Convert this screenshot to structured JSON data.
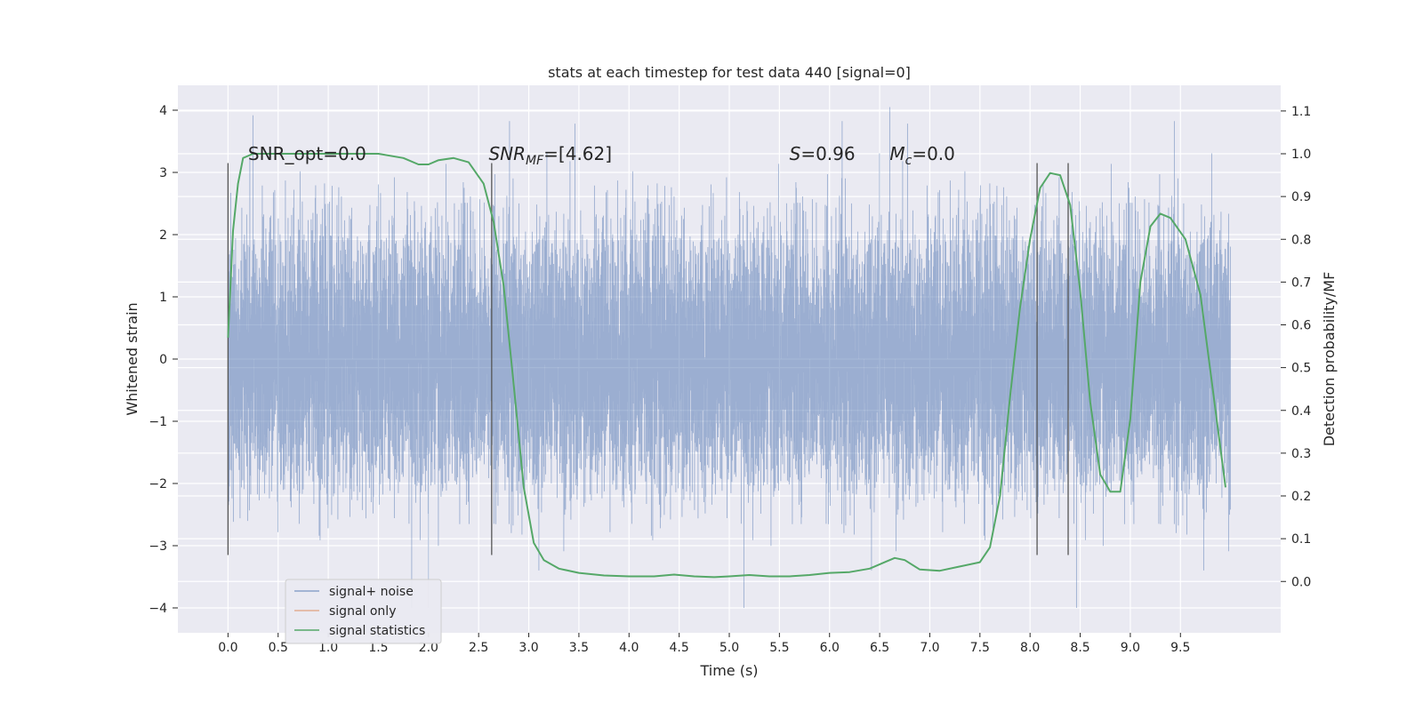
{
  "chart_data": {
    "type": "line",
    "title": "stats at each timestep for test data 440 [signal=0]",
    "xlabel": "Time (s)",
    "ylabel_left": "Whitened strain",
    "ylabel_right": "Detection probability/MF",
    "xlim": [
      -0.5,
      10.5
    ],
    "ylim_left": [
      -4.4,
      4.4
    ],
    "ylim_right": [
      -0.12,
      1.16
    ],
    "x_ticks": [
      0.0,
      0.5,
      1.0,
      1.5,
      2.0,
      2.5,
      3.0,
      3.5,
      4.0,
      4.5,
      5.0,
      5.5,
      6.0,
      6.5,
      7.0,
      7.5,
      8.0,
      8.5,
      9.0,
      9.5
    ],
    "x_tick_labels": [
      "0.0",
      "0.5",
      "1.0",
      "1.5",
      "2.0",
      "2.5",
      "3.0",
      "3.5",
      "4.0",
      "4.5",
      "5.0",
      "5.5",
      "6.0",
      "6.5",
      "7.0",
      "7.5",
      "8.0",
      "8.5",
      "9.0",
      "9.5"
    ],
    "y_left_ticks": [
      -4,
      -3,
      -2,
      -1,
      0,
      1,
      2,
      3,
      4
    ],
    "y_left_tick_labels": [
      "−4",
      "−3",
      "−2",
      "−1",
      "0",
      "1",
      "2",
      "3",
      "4"
    ],
    "y_right_ticks": [
      0.0,
      0.1,
      0.2,
      0.3,
      0.4,
      0.5,
      0.6,
      0.7,
      0.8,
      0.9,
      1.0,
      1.1
    ],
    "y_right_tick_labels": [
      "0.0",
      "0.1",
      "0.2",
      "0.3",
      "0.4",
      "0.5",
      "0.6",
      "0.7",
      "0.8",
      "0.9",
      "1.0",
      "1.1"
    ],
    "grid": true,
    "legend_position": "bottom-left",
    "annotations": {
      "snr_opt": "SNR_opt=0.0",
      "snr_mf_symbol": "SNR",
      "snr_mf_sub": "MF",
      "snr_mf_value": "=[4.62]",
      "s_symbol": "S",
      "s_value": "=0.96",
      "mc_symbol": "M",
      "mc_sub": "c",
      "mc_value": "=0.0"
    },
    "annotation_x": [
      0.2,
      2.6,
      5.6,
      6.6
    ],
    "annotation_y": 3.2,
    "vertical_markers_x": [
      0.0,
      2.63,
      8.07,
      8.38
    ],
    "vertical_markers_ylim": [
      -3.15,
      3.15
    ],
    "series": [
      {
        "name": "signal+ noise",
        "color": "#4c72b0",
        "axis": "left",
        "kind": "noise",
        "x_range": [
          0.0,
          10.0
        ],
        "envelope_std": 1.0,
        "peak_max": 4.05,
        "peak_min": -4.0
      },
      {
        "name": "signal only",
        "color": "#dd8452",
        "axis": "left",
        "kind": "empty"
      },
      {
        "name": "signal statistics",
        "color": "#55a868",
        "axis": "right",
        "kind": "line",
        "x": [
          0.0,
          0.05,
          0.1,
          0.15,
          0.25,
          0.5,
          1.0,
          1.5,
          1.75,
          1.9,
          2.0,
          2.1,
          2.25,
          2.4,
          2.55,
          2.65,
          2.75,
          2.85,
          2.95,
          3.05,
          3.15,
          3.3,
          3.5,
          3.75,
          4.0,
          4.25,
          4.45,
          4.65,
          4.85,
          5.0,
          5.2,
          5.4,
          5.6,
          5.8,
          6.0,
          6.2,
          6.4,
          6.55,
          6.65,
          6.75,
          6.9,
          7.1,
          7.3,
          7.5,
          7.6,
          7.7,
          7.8,
          7.9,
          8.0,
          8.1,
          8.2,
          8.3,
          8.4,
          8.5,
          8.6,
          8.7,
          8.8,
          8.9,
          9.0,
          9.1,
          9.2,
          9.3,
          9.4,
          9.55,
          9.7,
          9.85,
          9.95
        ],
        "y": [
          0.57,
          0.82,
          0.93,
          0.99,
          1.0,
          1.0,
          1.0,
          1.0,
          0.99,
          0.975,
          0.975,
          0.985,
          0.99,
          0.98,
          0.93,
          0.84,
          0.69,
          0.46,
          0.22,
          0.09,
          0.05,
          0.03,
          0.02,
          0.014,
          0.012,
          0.012,
          0.016,
          0.012,
          0.01,
          0.012,
          0.015,
          0.012,
          0.012,
          0.015,
          0.02,
          0.022,
          0.03,
          0.045,
          0.055,
          0.05,
          0.028,
          0.025,
          0.035,
          0.045,
          0.08,
          0.2,
          0.43,
          0.64,
          0.8,
          0.92,
          0.955,
          0.95,
          0.88,
          0.68,
          0.42,
          0.25,
          0.21,
          0.21,
          0.38,
          0.7,
          0.83,
          0.86,
          0.85,
          0.8,
          0.67,
          0.4,
          0.22
        ]
      }
    ]
  }
}
